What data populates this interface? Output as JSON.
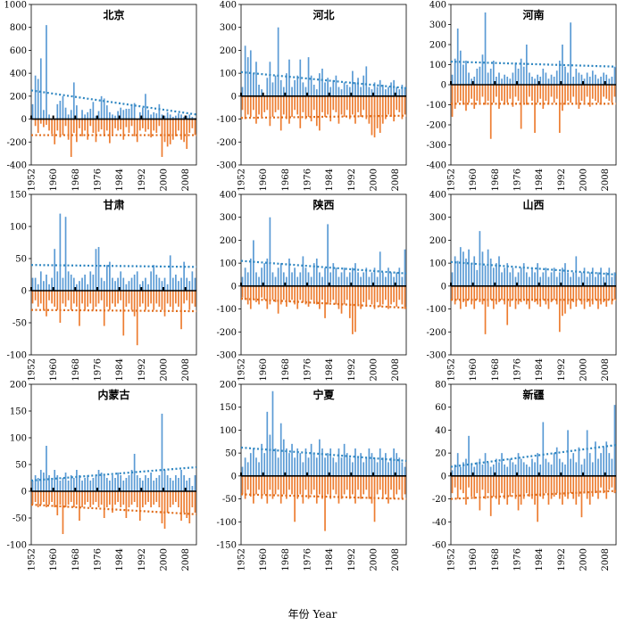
{
  "figure": {
    "xlabel": "年份 Year"
  },
  "colors": {
    "positive": "#5b9bd5",
    "negative": "#ed7d31",
    "trend_pos": "#2e86c1",
    "trend_neg": "#e06c1a"
  },
  "chart_data": [
    {
      "type": "bar",
      "title": "北京",
      "ylim": [
        -400,
        1000
      ],
      "yticks": [
        -400,
        -200,
        0,
        200,
        400,
        600,
        800,
        1000
      ],
      "xticks": [
        "1952",
        "1960",
        "1968",
        "1976",
        "1984",
        "1992",
        "2000",
        "2008"
      ],
      "x_start": 1952,
      "x_end": 2012,
      "positive": [
        130,
        380,
        350,
        530,
        80,
        820,
        40,
        0,
        0,
        130,
        160,
        200,
        100,
        40,
        80,
        320,
        120,
        0,
        80,
        40,
        60,
        90,
        150,
        30,
        70,
        200,
        180,
        120,
        60,
        40,
        30,
        70,
        100,
        80,
        90,
        90,
        120,
        140,
        0,
        60,
        100,
        220,
        80,
        40,
        60,
        50,
        130,
        40,
        30,
        60,
        40,
        20,
        30,
        50,
        40,
        20,
        30,
        40,
        20,
        10
      ],
      "negative": [
        0,
        -60,
        -120,
        -40,
        -70,
        -50,
        -100,
        -130,
        -220,
        -100,
        -160,
        -140,
        -60,
        -180,
        -330,
        -120,
        -200,
        -80,
        -150,
        -100,
        -180,
        -60,
        -120,
        -200,
        -110,
        -90,
        -150,
        -100,
        -210,
        -130,
        -80,
        -100,
        -90,
        -180,
        -70,
        -120,
        -60,
        -150,
        -200,
        -100,
        -80,
        -110,
        -90,
        -160,
        -100,
        -120,
        -60,
        -330,
        -200,
        -240,
        -220,
        -180,
        -150,
        -100,
        -180,
        -200,
        -260,
        -120,
        -80,
        -140
      ],
      "trend_pos": [
        250,
        40
      ],
      "trend_neg": [
        -140,
        -140
      ]
    },
    {
      "type": "bar",
      "title": "河北",
      "ylim": [
        -300,
        400
      ],
      "yticks": [
        -300,
        -200,
        -100,
        0,
        100,
        200,
        300,
        400
      ],
      "xticks": [
        "1952",
        "1960",
        "1968",
        "1976",
        "1984",
        "1992",
        "2000",
        "2008"
      ],
      "x_start": 1952,
      "x_end": 2012,
      "positive": [
        40,
        220,
        170,
        200,
        100,
        150,
        50,
        30,
        0,
        80,
        150,
        60,
        90,
        300,
        70,
        40,
        100,
        160,
        40,
        70,
        90,
        160,
        60,
        40,
        170,
        90,
        50,
        30,
        100,
        120,
        60,
        80,
        40,
        70,
        90,
        40,
        30,
        60,
        50,
        40,
        110,
        60,
        80,
        40,
        90,
        130,
        40,
        30,
        60,
        40,
        70,
        50,
        30,
        40,
        60,
        70,
        40,
        30,
        50,
        40
      ],
      "negative": [
        -60,
        -100,
        -80,
        -90,
        -60,
        -120,
        -80,
        -90,
        -70,
        -60,
        -130,
        -90,
        -70,
        -60,
        -150,
        -80,
        -100,
        -120,
        -90,
        -60,
        -80,
        -140,
        -70,
        -100,
        -90,
        -110,
        -60,
        -130,
        -150,
        -70,
        -90,
        -80,
        -110,
        -60,
        -70,
        -120,
        -80,
        -90,
        -60,
        -100,
        -80,
        -120,
        -70,
        -90,
        -60,
        -100,
        -120,
        -170,
        -180,
        -140,
        -160,
        -120,
        -100,
        -80,
        -90,
        -110,
        -60,
        -70,
        -100,
        -80
      ],
      "trend_pos": [
        105,
        35
      ],
      "trend_neg": [
        -95,
        -85
      ]
    },
    {
      "type": "bar",
      "title": "河南",
      "ylim": [
        -400,
        400
      ],
      "yticks": [
        -400,
        -300,
        -200,
        -100,
        0,
        100,
        200,
        300,
        400
      ],
      "xticks": [
        "1952",
        "1960",
        "1968",
        "1976",
        "1984",
        "1992",
        "2000",
        "2008"
      ],
      "x_start": 1952,
      "x_end": 2012,
      "positive": [
        50,
        130,
        280,
        170,
        100,
        120,
        60,
        30,
        40,
        80,
        90,
        150,
        360,
        60,
        80,
        120,
        40,
        60,
        30,
        50,
        40,
        30,
        60,
        110,
        80,
        130,
        90,
        200,
        60,
        40,
        30,
        50,
        40,
        80,
        60,
        30,
        50,
        40,
        70,
        120,
        200,
        90,
        60,
        310,
        40,
        80,
        60,
        50,
        30,
        60,
        40,
        70,
        50,
        30,
        40,
        60,
        50,
        30,
        40,
        90
      ],
      "negative": [
        -160,
        -120,
        -90,
        -80,
        -100,
        -130,
        -90,
        -70,
        -120,
        -80,
        -90,
        -60,
        -100,
        -80,
        -270,
        -90,
        -60,
        -120,
        -80,
        -100,
        -90,
        -70,
        -110,
        -60,
        -80,
        -220,
        -90,
        -100,
        -60,
        -80,
        -240,
        -90,
        -70,
        -120,
        -80,
        -100,
        -60,
        -90,
        -70,
        -240,
        -130,
        -100,
        -80,
        -90,
        -60,
        -100,
        -120,
        -80,
        -90,
        -60,
        -110,
        -70,
        -80,
        -90,
        -100,
        -60,
        -70,
        -80,
        -90,
        -60
      ],
      "trend_pos": [
        115,
        90
      ],
      "trend_neg": [
        -95,
        -95
      ]
    },
    {
      "type": "bar",
      "title": "甘肃",
      "ylim": [
        -100,
        150
      ],
      "yticks": [
        -100,
        -50,
        0,
        50,
        100,
        150
      ],
      "xticks": [
        "1952",
        "1960",
        "1968",
        "1976",
        "1984",
        "1992",
        "2000",
        "2008"
      ],
      "x_start": 1952,
      "x_end": 2012,
      "positive": [
        20,
        20,
        10,
        30,
        15,
        25,
        10,
        20,
        65,
        30,
        120,
        20,
        115,
        30,
        25,
        20,
        10,
        15,
        20,
        25,
        10,
        30,
        25,
        65,
        68,
        20,
        15,
        40,
        45,
        20,
        15,
        20,
        30,
        20,
        10,
        15,
        20,
        25,
        30,
        10,
        15,
        20,
        10,
        30,
        40,
        25,
        20,
        15,
        20,
        10,
        55,
        20,
        25,
        15,
        20,
        45,
        20,
        15,
        30,
        20
      ],
      "negative": [
        -20,
        -15,
        -25,
        -20,
        -30,
        -40,
        -15,
        -20,
        -25,
        -30,
        -50,
        -20,
        -25,
        -15,
        -30,
        -20,
        -25,
        -55,
        -20,
        -30,
        -25,
        -20,
        -30,
        -25,
        -20,
        -15,
        -55,
        -25,
        -30,
        -20,
        -25,
        -20,
        -15,
        -70,
        -25,
        -20,
        -30,
        -40,
        -85,
        -25,
        -20,
        -30,
        -25,
        -20,
        -30,
        -20,
        -25,
        -30,
        -40,
        -20,
        -25,
        -30,
        -20,
        -25,
        -60,
        -20,
        -15,
        -30,
        -20,
        -25
      ],
      "trend_pos": [
        40,
        37
      ],
      "trend_neg": [
        -30,
        -32
      ]
    },
    {
      "type": "bar",
      "title": "陕西",
      "ylim": [
        -300,
        400
      ],
      "yticks": [
        -300,
        -200,
        -100,
        0,
        100,
        200,
        300,
        400
      ],
      "xticks": [
        "1952",
        "1960",
        "1968",
        "1976",
        "1984",
        "1992",
        "2000",
        "2008"
      ],
      "x_start": 1952,
      "x_end": 2012,
      "positive": [
        40,
        80,
        60,
        120,
        200,
        60,
        40,
        80,
        100,
        120,
        300,
        60,
        40,
        80,
        100,
        60,
        40,
        120,
        60,
        80,
        40,
        60,
        130,
        80,
        60,
        40,
        100,
        120,
        60,
        40,
        80,
        270,
        60,
        100,
        80,
        40,
        60,
        80,
        40,
        60,
        80,
        100,
        60,
        40,
        60,
        80,
        40,
        60,
        80,
        40,
        150,
        60,
        40,
        80,
        60,
        40,
        60,
        80,
        40,
        160
      ],
      "negative": [
        -50,
        -60,
        -80,
        -100,
        -60,
        -70,
        -80,
        -50,
        -60,
        -100,
        -80,
        -60,
        -70,
        -120,
        -80,
        -60,
        -90,
        -70,
        -60,
        -80,
        -100,
        -60,
        -70,
        -80,
        -90,
        -60,
        -70,
        -80,
        -100,
        -60,
        -140,
        -80,
        -70,
        -60,
        -80,
        -100,
        -120,
        -80,
        -60,
        -140,
        -210,
        -200,
        -80,
        -100,
        -70,
        -90,
        -60,
        -80,
        -100,
        -70,
        -90,
        -80,
        -60,
        -100,
        -80,
        -70,
        -90,
        -60,
        -80,
        -100
      ],
      "trend_pos": [
        110,
        55
      ],
      "trend_neg": [
        -55,
        -95
      ]
    },
    {
      "type": "bar",
      "title": "山西",
      "ylim": [
        -300,
        400
      ],
      "yticks": [
        -300,
        -200,
        -100,
        0,
        100,
        200,
        300,
        400
      ],
      "xticks": [
        "1952",
        "1960",
        "1968",
        "1976",
        "1984",
        "1992",
        "2000",
        "2008"
      ],
      "x_start": 1952,
      "x_end": 2012,
      "positive": [
        60,
        130,
        110,
        170,
        150,
        120,
        160,
        100,
        130,
        70,
        240,
        150,
        90,
        160,
        120,
        80,
        100,
        130,
        60,
        80,
        100,
        60,
        80,
        40,
        60,
        80,
        100,
        60,
        40,
        80,
        60,
        100,
        40,
        60,
        80,
        40,
        60,
        80,
        40,
        60,
        80,
        100,
        60,
        40,
        60,
        130,
        40,
        60,
        80,
        40,
        60,
        80,
        40,
        60,
        80,
        40,
        60,
        80,
        40,
        60
      ],
      "negative": [
        -60,
        -80,
        -60,
        -100,
        -70,
        -90,
        -60,
        -80,
        -100,
        -60,
        -70,
        -80,
        -210,
        -90,
        -60,
        -100,
        -80,
        -70,
        -60,
        -80,
        -170,
        -90,
        -60,
        -100,
        -80,
        -70,
        -60,
        -80,
        -100,
        -60,
        -70,
        -80,
        -90,
        -60,
        -80,
        -100,
        -70,
        -60,
        -80,
        -200,
        -130,
        -120,
        -80,
        -100,
        -70,
        -90,
        -60,
        -80,
        -100,
        -70,
        -90,
        -80,
        -60,
        -100,
        -80,
        -70,
        -90,
        -60,
        -80,
        -60
      ],
      "trend_pos": [
        105,
        50
      ],
      "trend_neg": [
        -60,
        -60
      ]
    },
    {
      "type": "bar",
      "title": "内蒙古",
      "ylim": [
        -100,
        200
      ],
      "yticks": [
        -100,
        -50,
        0,
        50,
        100,
        150,
        200
      ],
      "xticks": [
        "1952",
        "1960",
        "1968",
        "1976",
        "1984",
        "1992",
        "2000",
        "2008"
      ],
      "x_start": 1952,
      "x_end": 2012,
      "positive": [
        20,
        30,
        25,
        40,
        35,
        85,
        30,
        25,
        40,
        30,
        20,
        25,
        35,
        20,
        30,
        25,
        40,
        30,
        20,
        25,
        30,
        20,
        25,
        30,
        40,
        35,
        30,
        25,
        20,
        30,
        25,
        35,
        30,
        20,
        25,
        30,
        40,
        70,
        30,
        25,
        20,
        30,
        25,
        35,
        20,
        25,
        30,
        145,
        40,
        30,
        25,
        20,
        30,
        25,
        40,
        30,
        20,
        25,
        10,
        30
      ],
      "negative": [
        -25,
        -20,
        -30,
        -25,
        -20,
        -30,
        -25,
        -20,
        -30,
        -45,
        -25,
        -80,
        -30,
        -25,
        -20,
        -30,
        -25,
        -55,
        -30,
        -25,
        -20,
        -30,
        -25,
        -20,
        -30,
        -25,
        -50,
        -30,
        -25,
        -40,
        -25,
        -20,
        -30,
        -25,
        -50,
        -30,
        -25,
        -20,
        -30,
        -55,
        -30,
        -25,
        -20,
        -30,
        -25,
        -20,
        -30,
        -60,
        -70,
        -40,
        -30,
        -25,
        -20,
        -30,
        -55,
        -40,
        -50,
        -60,
        -30,
        -40
      ],
      "trend_pos": [
        20,
        45
      ],
      "trend_neg": [
        -25,
        -43
      ]
    },
    {
      "type": "bar",
      "title": "宁夏",
      "ylim": [
        -150,
        200
      ],
      "yticks": [
        -150,
        -100,
        -50,
        0,
        50,
        100,
        150,
        200
      ],
      "xticks": [
        "1952",
        "1960",
        "1968",
        "1976",
        "1984",
        "1992",
        "2000",
        "2008"
      ],
      "x_start": 1952,
      "x_end": 2012,
      "positive": [
        20,
        40,
        30,
        50,
        60,
        40,
        30,
        70,
        50,
        140,
        90,
        185,
        60,
        40,
        115,
        80,
        60,
        50,
        70,
        40,
        60,
        50,
        30,
        60,
        40,
        70,
        50,
        40,
        80,
        60,
        40,
        50,
        60,
        40,
        30,
        60,
        40,
        70,
        50,
        40,
        30,
        60,
        40,
        50,
        30,
        40,
        60,
        50,
        40,
        30,
        60,
        40,
        50,
        30,
        40,
        60,
        50,
        40,
        30,
        20
      ],
      "negative": [
        -40,
        -50,
        -30,
        -45,
        -60,
        -40,
        -30,
        -50,
        -40,
        -60,
        -30,
        -50,
        -40,
        -30,
        -60,
        -40,
        -50,
        -30,
        -40,
        -100,
        -50,
        -40,
        -60,
        -30,
        -50,
        -40,
        -30,
        -60,
        -40,
        -50,
        -120,
        -40,
        -50,
        -30,
        -40,
        -60,
        -50,
        -40,
        -30,
        -50,
        -40,
        -60,
        -30,
        -50,
        -40,
        -30,
        -50,
        -60,
        -100,
        -40,
        -30,
        -50,
        -40,
        -60,
        -30,
        -50,
        -40,
        -30,
        -50,
        -40
      ],
      "trend_pos": [
        62,
        33
      ],
      "trend_neg": [
        -40,
        -50
      ]
    },
    {
      "type": "bar",
      "title": "新疆",
      "ylim": [
        -60,
        80
      ],
      "yticks": [
        -60,
        -40,
        -20,
        0,
        20,
        40,
        60,
        80
      ],
      "xticks": [
        "1952",
        "1960",
        "1968",
        "1976",
        "1984",
        "1992",
        "2000",
        "2008"
      ],
      "x_start": 1952,
      "x_end": 2012,
      "positive": [
        5,
        10,
        20,
        8,
        12,
        15,
        35,
        10,
        8,
        12,
        15,
        10,
        20,
        12,
        8,
        10,
        15,
        12,
        20,
        10,
        8,
        15,
        12,
        10,
        20,
        15,
        12,
        10,
        8,
        15,
        12,
        20,
        10,
        47,
        15,
        12,
        10,
        20,
        25,
        15,
        12,
        10,
        40,
        15,
        20,
        12,
        25,
        10,
        15,
        40,
        20,
        12,
        30,
        15,
        20,
        25,
        30,
        20,
        15,
        62
      ],
      "negative": [
        -15,
        -10,
        -20,
        -12,
        -15,
        -25,
        -10,
        -18,
        -20,
        -15,
        -30,
        -12,
        -20,
        -15,
        -35,
        -18,
        -20,
        -25,
        -15,
        -20,
        -25,
        -18,
        -15,
        -20,
        -30,
        -25,
        -20,
        -15,
        -18,
        -20,
        -25,
        -40,
        -18,
        -20,
        -15,
        -25,
        -20,
        -18,
        -15,
        -20,
        -25,
        -18,
        -20,
        -15,
        -20,
        -25,
        -18,
        -36,
        -15,
        -20,
        -25,
        -18,
        -15,
        -20,
        -10,
        -15,
        -20,
        -12,
        -10,
        -15
      ],
      "trend_pos": [
        8,
        27
      ],
      "trend_neg": [
        -20,
        -13
      ]
    }
  ]
}
